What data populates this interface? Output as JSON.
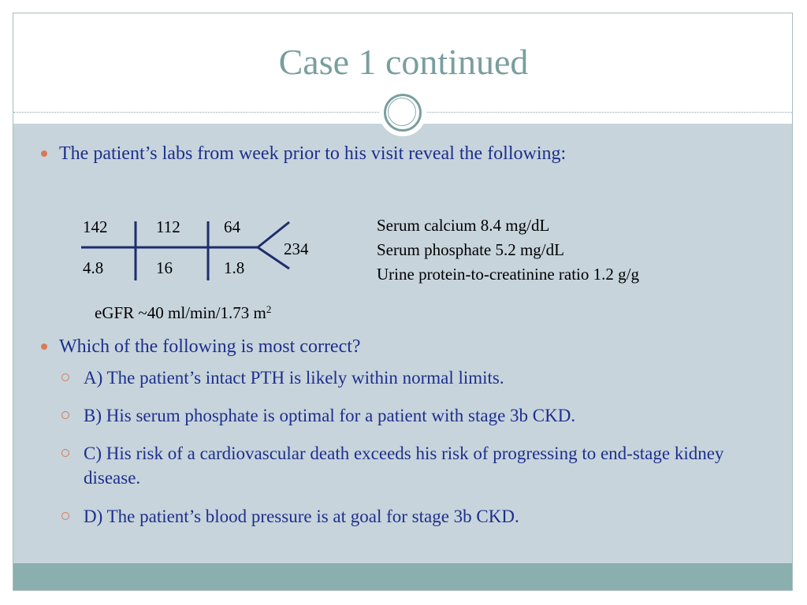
{
  "slide": {
    "title": "Case 1 continued",
    "bullets": [
      "The patient’s labs from week prior to his visit reveal the following:",
      "Which of the following is most correct?"
    ],
    "labs": {
      "top_row": [
        "142",
        "112",
        "64"
      ],
      "bottom_row": [
        "4.8",
        "16",
        "1.8"
      ],
      "glucose": "234",
      "egfr_text": "eGFR ~40 ml/min/1.73 m",
      "egfr_sup": "2",
      "side_labs": [
        "Serum calcium  8.4 mg/dL",
        "Serum phosphate  5.2 mg/dL",
        "Urine protein-to-creatinine ratio 1.2 g/g"
      ]
    },
    "options": [
      "A) The patient’s intact PTH is likely within normal limits.",
      "B) His serum phosphate is optimal for a patient with stage 3b CKD.",
      "C) His risk of a cardiovascular death exceeds his risk of progressing to end-stage kidney disease.",
      "D) The patient’s blood pressure is at goal for stage 3b CKD."
    ]
  },
  "colors": {
    "title": "#7a9e9e",
    "content_bg": "#c7d4dc",
    "footer_bg": "#8baeae",
    "text_blue": "#1e2f8c",
    "bullet_orange": "#d97a56",
    "fishbone_lines": "#1f2d6b"
  }
}
